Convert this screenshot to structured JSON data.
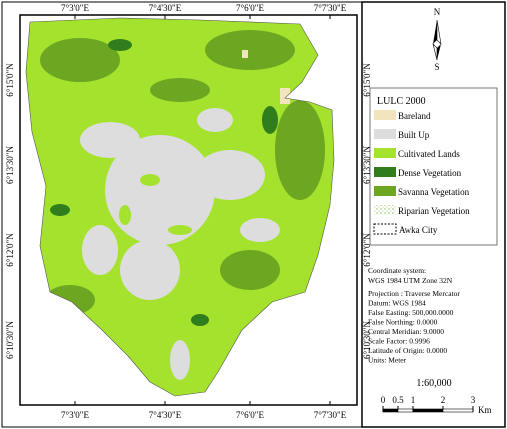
{
  "map": {
    "x_labels": [
      "7°3'0\"E",
      "7°4'30\"E",
      "7°6'0\"E",
      "7°7'30\"E"
    ],
    "y_labels": [
      "6°15'0\"N",
      "6°13'30\"N",
      "6°12'0\"N",
      "6°10'30\"N"
    ],
    "north": "N",
    "south": "S",
    "legend": {
      "title": "LULC 2000",
      "items": [
        {
          "label": "Bareland",
          "color": "#f2e4bb"
        },
        {
          "label": "Built Up",
          "color": "#dddddd"
        },
        {
          "label": "Cultivated Lands",
          "color": "#a4e22e"
        },
        {
          "label": "Dense Vegetation",
          "color": "#2f7d1c"
        },
        {
          "label": "Savanna Vegetation",
          "color": "#6da722"
        },
        {
          "label": "Riparian Vegetation",
          "color": "riparian"
        },
        {
          "label": "Awka City",
          "color": "outline"
        }
      ]
    },
    "coordinate_system": [
      "Coordinate system:",
      "WGS 1984 UTM Zone 32N"
    ],
    "projection": [
      "Projection : Traverse Mercator",
      "Datum: WGS 1984",
      "False Easting: 500,000.0000",
      "False Northing: 0.0000",
      "Central Meridian: 9.0000",
      "Scale Factor: 0.9996",
      "Latitude of Origin: 0.0000",
      "Units: Meter"
    ],
    "scale": "1:60,000",
    "scale_bar": {
      "ticks": [
        0,
        0.5,
        1,
        2,
        3
      ],
      "unit": "Km"
    }
  }
}
